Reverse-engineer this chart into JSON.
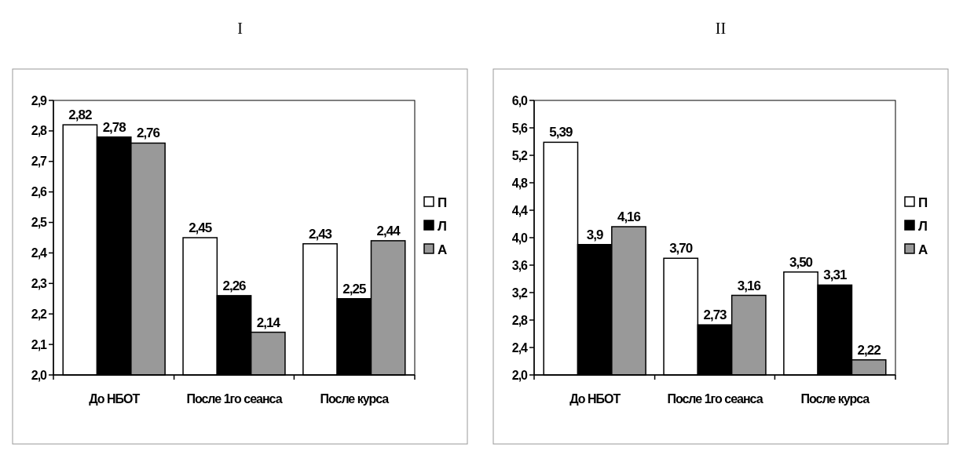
{
  "chart_data": [
    {
      "type": "bar",
      "title": "I",
      "categories": [
        "До НБОТ",
        "После 1го сеанса",
        "После курса"
      ],
      "legend": "right",
      "grid": false,
      "series": [
        {
          "name": "П",
          "color": "#ffffff",
          "values": [
            2.82,
            2.45,
            2.43
          ],
          "value_labels": [
            "2,82",
            "2,45",
            "2,43"
          ]
        },
        {
          "name": "Л",
          "color": "#000000",
          "values": [
            2.78,
            2.26,
            2.25
          ],
          "value_labels": [
            "2,78",
            "2,26",
            "2,25"
          ]
        },
        {
          "name": "А",
          "color": "#999999",
          "values": [
            2.76,
            2.14,
            2.44
          ],
          "value_labels": [
            "2,76",
            "2,14",
            "2,44"
          ]
        }
      ],
      "ylim": [
        2.0,
        2.9
      ],
      "yticks": [
        {
          "value": 2.0,
          "label": "2,0"
        },
        {
          "value": 2.1,
          "label": "2,1"
        },
        {
          "value": 2.2,
          "label": "2,2"
        },
        {
          "value": 2.3,
          "label": "2,3"
        },
        {
          "value": 2.4,
          "label": "2,4"
        },
        {
          "value": 2.5,
          "label": "2,5"
        },
        {
          "value": 2.6,
          "label": "2,6"
        },
        {
          "value": 2.7,
          "label": "2,7"
        },
        {
          "value": 2.8,
          "label": "2,8"
        },
        {
          "value": 2.9,
          "label": "2,9"
        }
      ]
    },
    {
      "type": "bar",
      "title": "II",
      "categories": [
        "До НБОТ",
        "После 1го сеанса",
        "После курса"
      ],
      "legend": "right",
      "grid": false,
      "series": [
        {
          "name": "П",
          "color": "#ffffff",
          "values": [
            5.39,
            3.7,
            3.5
          ],
          "value_labels": [
            "5,39",
            "3,70",
            "3,50"
          ]
        },
        {
          "name": "Л",
          "color": "#000000",
          "values": [
            3.9,
            2.73,
            3.31
          ],
          "value_labels": [
            "3,9",
            "2,73",
            "3,31"
          ]
        },
        {
          "name": "А",
          "color": "#999999",
          "values": [
            4.16,
            3.16,
            2.22
          ],
          "value_labels": [
            "4,16",
            "3,16",
            "2,22"
          ]
        }
      ],
      "ylim": [
        2.0,
        6.0
      ],
      "yticks": [
        {
          "value": 2.0,
          "label": "2,0"
        },
        {
          "value": 2.4,
          "label": "2,4"
        },
        {
          "value": 2.8,
          "label": "2,8"
        },
        {
          "value": 3.2,
          "label": "3,2"
        },
        {
          "value": 3.6,
          "label": "3,6"
        },
        {
          "value": 4.0,
          "label": "4,0"
        },
        {
          "value": 4.4,
          "label": "4,4"
        },
        {
          "value": 4.8,
          "label": "4,8"
        },
        {
          "value": 5.2,
          "label": "5,2"
        },
        {
          "value": 5.6,
          "label": "5,6"
        },
        {
          "value": 6.0,
          "label": "6,0"
        }
      ]
    }
  ]
}
